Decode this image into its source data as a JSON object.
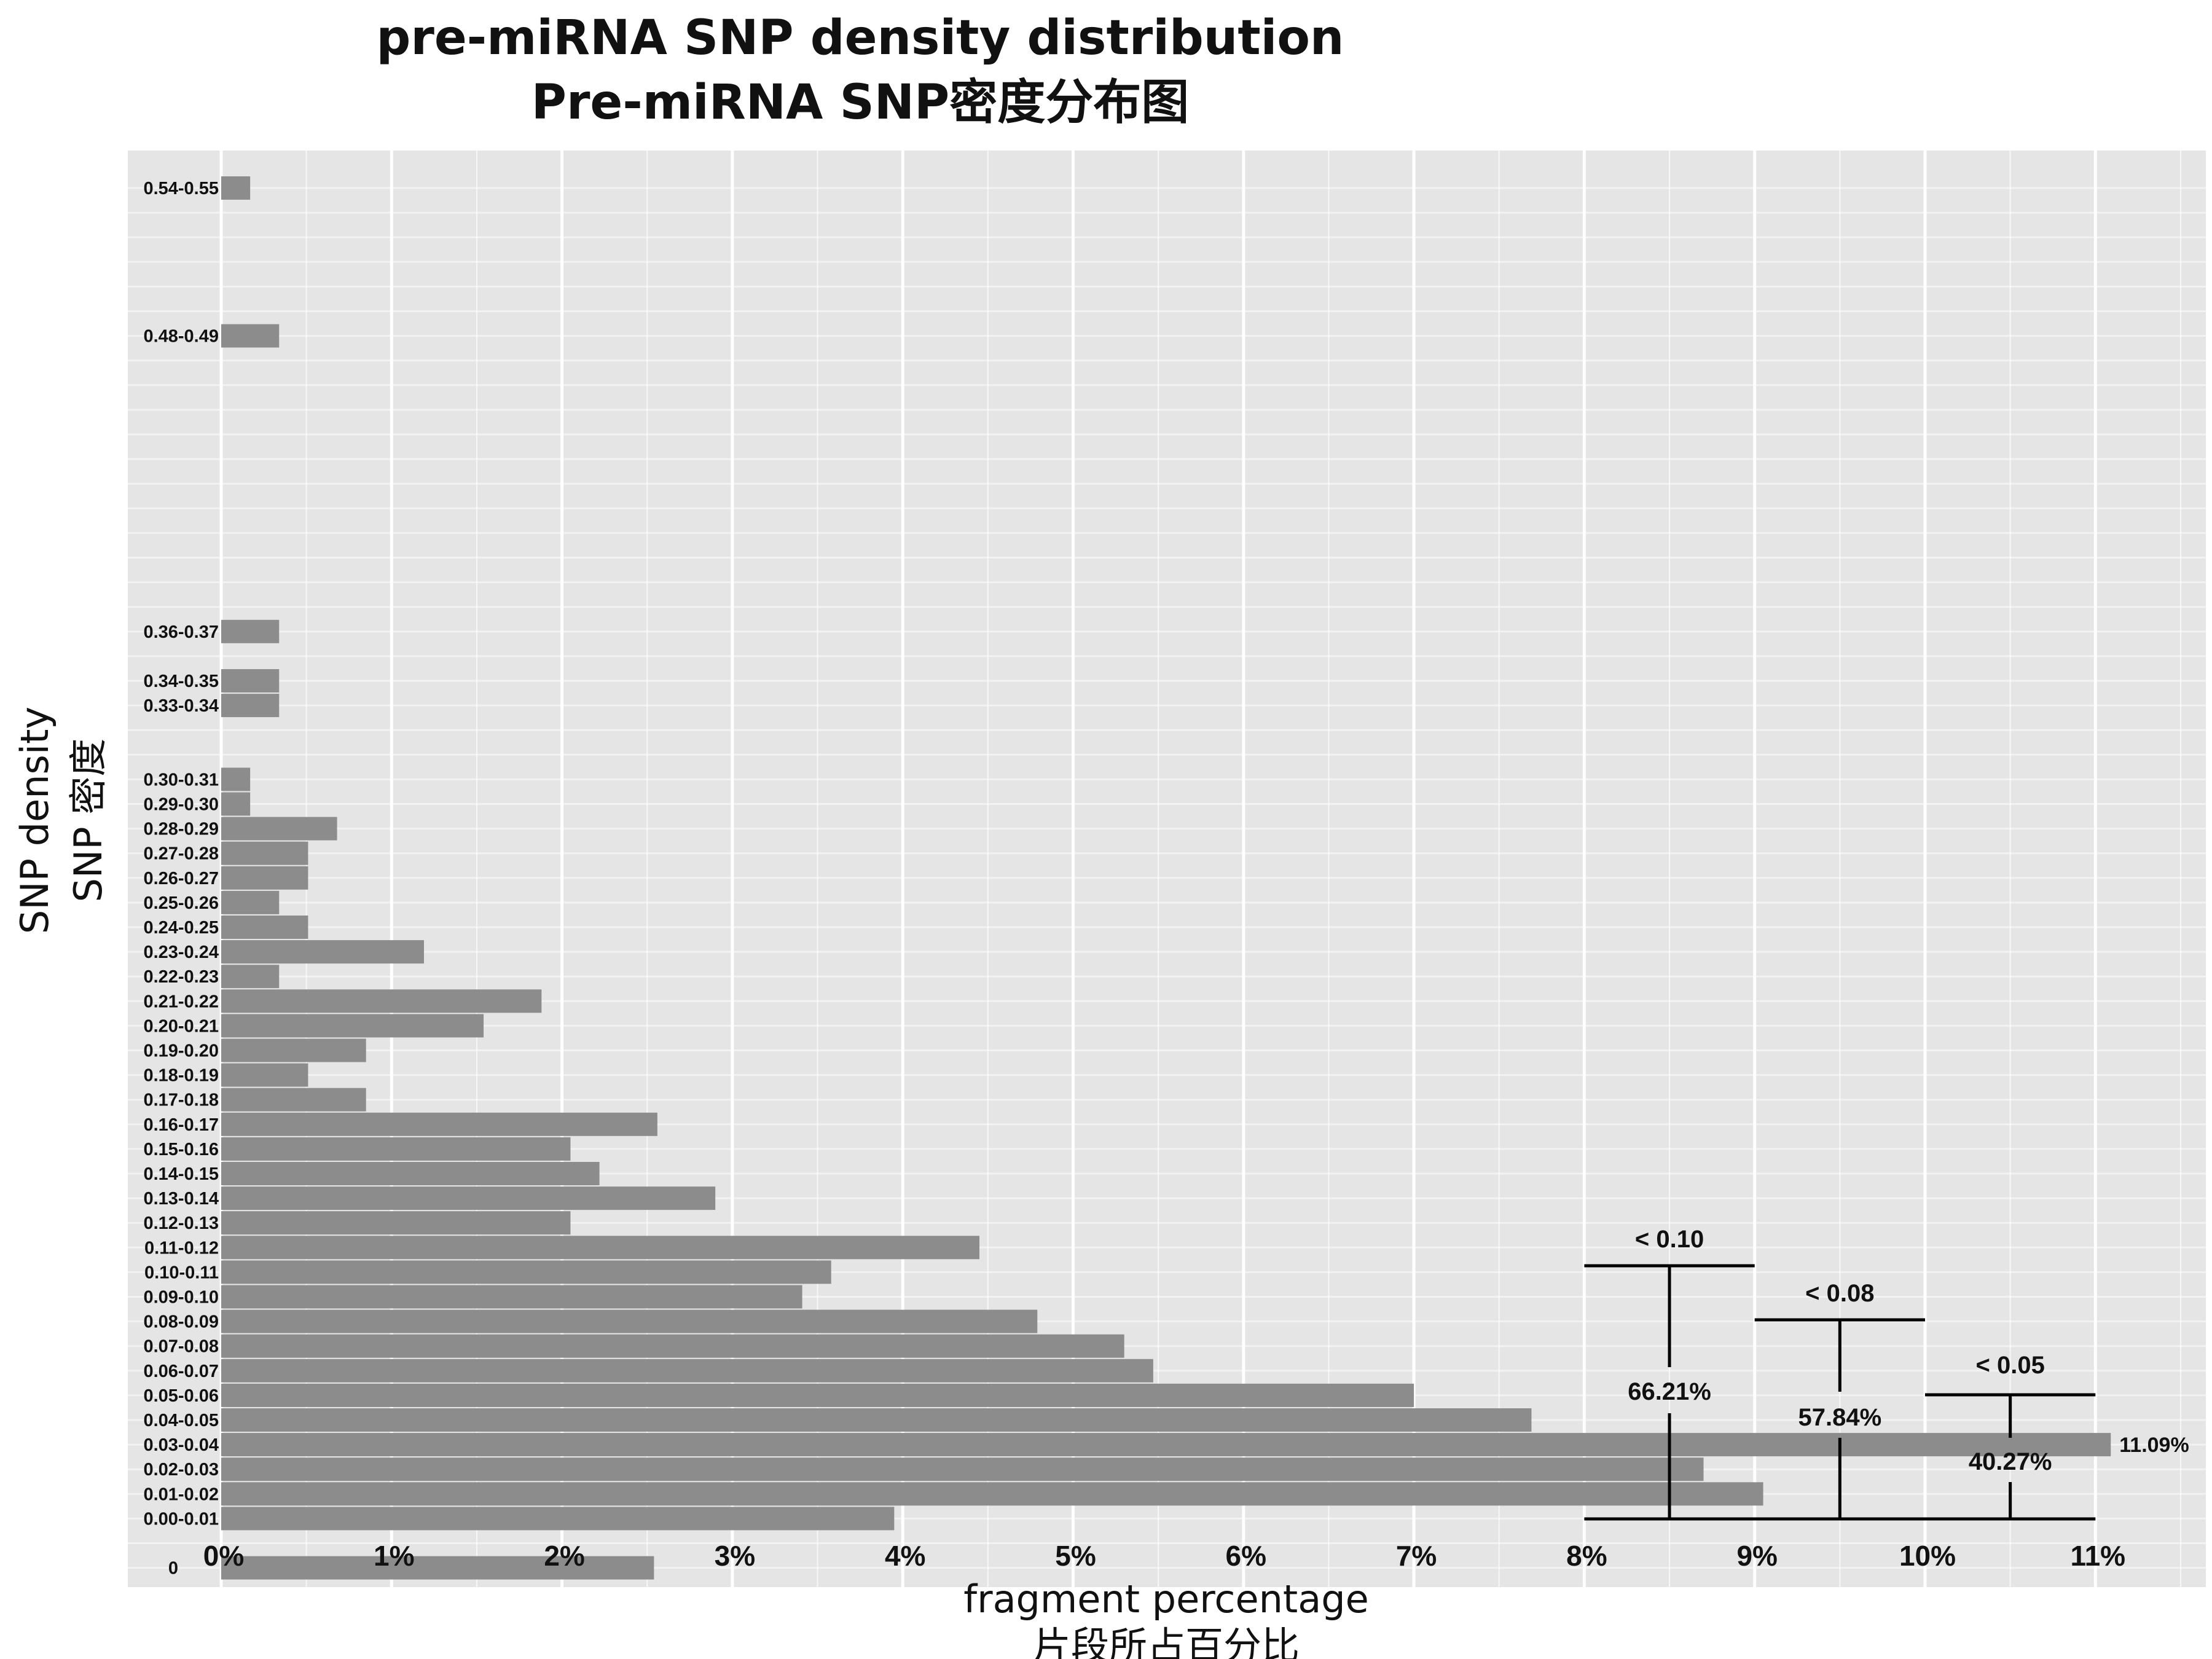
{
  "chart_data": {
    "type": "bar",
    "orientation": "horizontal",
    "title": "pre-miRNA SNP density distribution",
    "subtitle": "Pre-miRNA SNP密度分布图",
    "xlabel": "fragment percentage",
    "xlabel_cn": "片段所占百分比",
    "ylabel": "SNP density",
    "ylabel_cn": "SNP 密度",
    "xlim": [
      0,
      11
    ],
    "x_ticks": [
      "0%",
      "1%",
      "2%",
      "3%",
      "4%",
      "5%",
      "6%",
      "7%",
      "8%",
      "9%",
      "10%",
      "11%"
    ],
    "grid": true,
    "bar_color": "#8c8c8c",
    "panel_color": "#e5e5e5",
    "categories": [
      "0",
      "0.00-0.01",
      "0.01-0.02",
      "0.02-0.03",
      "0.03-0.04",
      "0.04-0.05",
      "0.05-0.06",
      "0.06-0.07",
      "0.07-0.08",
      "0.08-0.09",
      "0.09-0.10",
      "0.10-0.11",
      "0.11-0.12",
      "0.12-0.13",
      "0.13-0.14",
      "0.14-0.15",
      "0.15-0.16",
      "0.16-0.17",
      "0.17-0.18",
      "0.18-0.19",
      "0.19-0.20",
      "0.20-0.21",
      "0.21-0.22",
      "0.22-0.23",
      "0.23-0.24",
      "0.24-0.25",
      "0.25-0.26",
      "0.26-0.27",
      "0.27-0.28",
      "0.28-0.29",
      "0.29-0.30",
      "0.30-0.31",
      "0.33-0.34",
      "0.34-0.35",
      "0.36-0.37",
      "0.48-0.49",
      "0.54-0.55"
    ],
    "values": [
      2.54,
      3.95,
      9.05,
      8.7,
      11.09,
      7.69,
      7.0,
      5.47,
      5.3,
      4.79,
      3.41,
      3.58,
      4.45,
      2.05,
      2.9,
      2.22,
      2.05,
      2.56,
      0.85,
      0.51,
      0.85,
      1.54,
      1.88,
      0.34,
      1.19,
      0.51,
      0.34,
      0.51,
      0.51,
      0.68,
      0.17,
      0.17,
      0.34,
      0.34,
      0.34,
      0.34,
      0.17
    ],
    "annotations": [
      {
        "label": "< 0.10",
        "value": "66.21%"
      },
      {
        "label": "< 0.08",
        "value": "57.84%"
      },
      {
        "label": "< 0.05",
        "value": "40.27%"
      },
      {
        "label": "11.09%"
      }
    ]
  }
}
